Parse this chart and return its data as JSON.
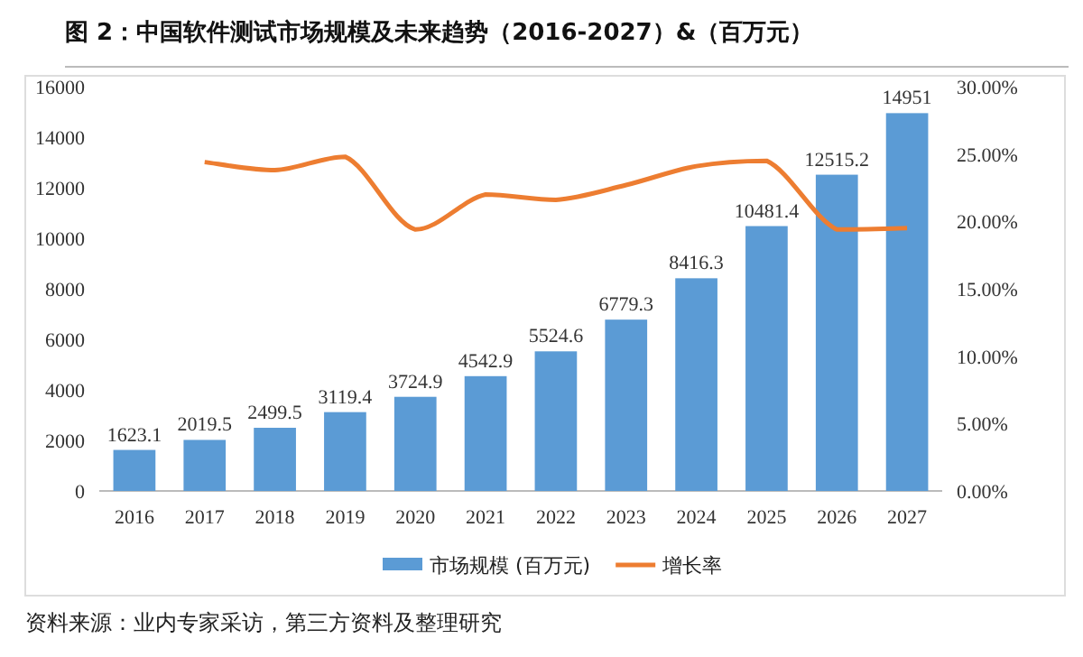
{
  "chart_data": {
    "type": "bar",
    "title": "图 2：中国软件测试市场规模及未来趋势（2016-2027）&（百万元）",
    "categories": [
      "2016",
      "2017",
      "2018",
      "2019",
      "2020",
      "2021",
      "2022",
      "2023",
      "2024",
      "2025",
      "2026",
      "2027"
    ],
    "series": [
      {
        "name": "市场规模 (百万元)",
        "color": "#5b9bd5",
        "values": [
          1623.1,
          2019.5,
          2499.5,
          3119.4,
          3724.9,
          4542.9,
          5524.6,
          6779.3,
          8416.3,
          10481.4,
          12515.2,
          14951
        ],
        "value_labels": [
          "1623.1",
          "2019.5",
          "2499.5",
          "3119.4",
          "3724.9",
          "4542.9",
          "5524.6",
          "6779.3",
          "8416.3",
          "10481.4",
          "12515.2",
          "14951"
        ]
      },
      {
        "name": "增长率",
        "type": "line",
        "axis": "y2",
        "color": "#ed7d31",
        "values": [
          null,
          24.4,
          23.8,
          24.8,
          19.4,
          22.0,
          21.6,
          22.7,
          24.1,
          24.5,
          19.4,
          19.5
        ]
      }
    ],
    "ylim": [
      0,
      16000
    ],
    "yticks": [
      0,
      2000,
      4000,
      6000,
      8000,
      10000,
      12000,
      14000,
      16000
    ],
    "y2lim": [
      0,
      30
    ],
    "y2ticks": [
      {
        "value": 0,
        "label": "0.00%"
      },
      {
        "value": 5,
        "label": "5.00%"
      },
      {
        "value": 10,
        "label": "10.00%"
      },
      {
        "value": 15,
        "label": "15.00%"
      },
      {
        "value": 20,
        "label": "20.00%"
      },
      {
        "value": 25,
        "label": "25.00%"
      },
      {
        "value": 30,
        "label": "30.00%"
      }
    ],
    "legend": "bottom",
    "marker": "none",
    "annotations": [
      "资料来源：业内专家采访，第三方资料及整理研究"
    ]
  }
}
